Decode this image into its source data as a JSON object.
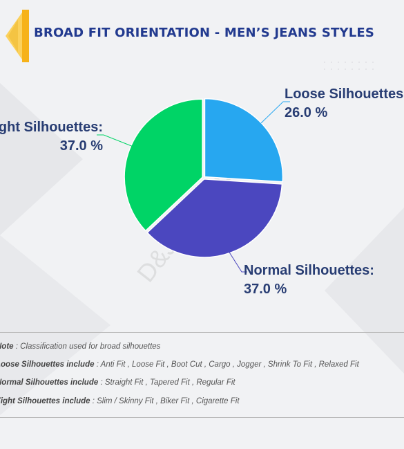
{
  "header": {
    "title": "BROAD FIT ORIENTATION - MEN’S JEANS STYLES"
  },
  "watermark": "D&J Reports",
  "colors": {
    "accent": "#f6b219",
    "title": "#223a8f",
    "loose": "#27a7f0",
    "normal": "#4b47bf",
    "tight": "#00d466",
    "label": "#283d73"
  },
  "chart_data": {
    "type": "pie",
    "title": "BROAD FIT ORIENTATION - MEN’S JEANS STYLES",
    "slices": [
      {
        "name": "Loose Silhouettes",
        "label": "Loose Silhouettes:",
        "value": 26.0,
        "value_label": "26.0 %",
        "color": "#27a7f0"
      },
      {
        "name": "Normal Silhouettes",
        "label": "Normal Silhouettes:",
        "value": 37.0,
        "value_label": "37.0 %",
        "color": "#4b47bf"
      },
      {
        "name": "Tight Silhouettes",
        "label": "Tight Silhouettes:",
        "value": 37.0,
        "value_label": "37.0 %",
        "color": "#00d466"
      }
    ]
  },
  "notes": [
    {
      "key": "Note",
      "text": " : Classification used for broad silhouettes"
    },
    {
      "key": "Loose Silhouettes include",
      "text": " : Anti Fit , Loose Fit , Boot Cut , Cargo , Jogger , Shrink To Fit , Relaxed Fit"
    },
    {
      "key": "Normal Silhouettes include",
      "text": " : Straight Fit , Tapered Fit , Regular Fit"
    },
    {
      "key": "Tight Silhouettes include",
      "text": " : Slim / Skinny Fit , Biker Fit , Cigarette Fit"
    }
  ]
}
